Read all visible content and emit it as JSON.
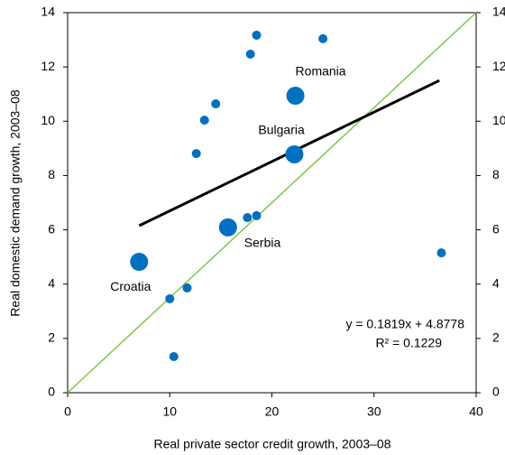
{
  "chart_data": {
    "type": "scatter",
    "x_label": "Real private sector credit growth, 2003–08",
    "y_label": "Real domestic demand growth, 2003–08",
    "x": [
      18.5,
      25.0,
      17.9,
      22.3,
      14.5,
      13.4,
      12.6,
      22.2,
      17.6,
      18.5,
      15.7,
      36.6,
      7.0,
      11.7,
      10.0,
      10.4
    ],
    "values": [
      13.17,
      13.04,
      12.47,
      10.94,
      10.64,
      10.04,
      8.81,
      8.78,
      6.45,
      6.52,
      6.09,
      5.15,
      4.82,
      3.86,
      3.46,
      1.33
    ],
    "sizes": [
      1,
      1,
      1,
      4,
      1,
      1,
      1,
      4,
      1,
      1,
      4,
      1,
      4,
      1,
      1,
      1
    ],
    "labels": [
      null,
      null,
      null,
      "Romania",
      null,
      null,
      null,
      "Bulgaria",
      null,
      null,
      "Serbia",
      null,
      "Croatia",
      null,
      null,
      null
    ],
    "color": "#0070c0",
    "xlim": [
      0,
      40
    ],
    "xticks": [
      0,
      10,
      20,
      30,
      40
    ],
    "ylim": [
      0,
      14
    ],
    "yticks": [
      0,
      2,
      4,
      6,
      8,
      10,
      12,
      14
    ],
    "y2lim": [
      0,
      14
    ],
    "y2ticks": [
      0,
      2,
      4,
      6,
      8,
      10,
      12,
      14
    ],
    "trendline": {
      "slope": 0.1819,
      "intercept": 4.8778,
      "xrange": [
        7.0,
        36.4
      ],
      "color": "#000000"
    },
    "diagonal": {
      "color": "#7ac943"
    },
    "annotations": [
      "y = 0.1819x + 4.8778",
      "R² = 0.1229"
    ]
  }
}
